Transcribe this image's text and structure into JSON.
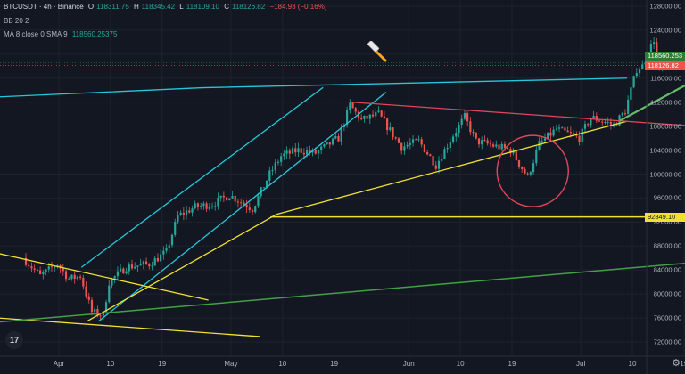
{
  "legend": {
    "symbol": "BTCUSDT · 4h · Binance",
    "o_label": "O",
    "o_value": "118311.75",
    "h_label": "H",
    "h_value": "118345.42",
    "l_label": "L",
    "l_value": "118109.10",
    "c_label": "C",
    "c_value": "118126.82",
    "change": "−184.93 (−0.16%)",
    "ma_label": "MA 8 close 0 SMA 9",
    "ma_value": "118560.25375",
    "bb_label": "BB 20 2"
  },
  "price_tags": {
    "ma": "118560.253",
    "last": "118126.82",
    "support": "92849.10"
  },
  "y_ticks": [
    "128000.00",
    "124000.00",
    "120000.00",
    "116000.00",
    "112000.00",
    "108000.00",
    "104000.00",
    "100000.00",
    "96000.00",
    "92000.00",
    "88000.00",
    "84000.00",
    "80000.00",
    "76000.00",
    "72000.00"
  ],
  "x_ticks": [
    "Apr",
    "10",
    "19",
    "May",
    "10",
    "19",
    "Jun",
    "10",
    "19",
    "Jul",
    "10",
    "19"
  ],
  "colors": {
    "background": "#131722",
    "up": "#26a69a",
    "down": "#ef5350",
    "trend_cyan": "#26c6da",
    "trend_yellow": "#f0e130",
    "trend_red": "#e0455a",
    "trend_green": "#43a047",
    "ma_tag": "#2e7d32",
    "last_tag": "#ef5350",
    "support_tag": "#f0e130"
  },
  "icons": {
    "logo": "tradingview-logo-icon",
    "settings": "gear-icon",
    "cursor": "hammer-icon"
  },
  "chart_data": {
    "type": "candlestick",
    "symbol": "BTCUSDT",
    "timeframe": "4h",
    "exchange": "Binance",
    "ylim": [
      71000,
      129000
    ],
    "x_labels": [
      "Apr",
      "10",
      "19",
      "May",
      "10",
      "19",
      "Jun",
      "10",
      "19",
      "Jul",
      "10",
      "19"
    ],
    "price_path": [
      [
        "Mar 26",
        86000
      ],
      [
        "Mar 29",
        83000
      ],
      [
        "Apr 1",
        85000
      ],
      [
        "Apr 3",
        82500
      ],
      [
        "Apr 5",
        83000
      ],
      [
        "Apr 7",
        77000
      ],
      [
        "Apr 9",
        76500
      ],
      [
        "Apr 10",
        82000
      ],
      [
        "Apr 13",
        84500
      ],
      [
        "Apr 17",
        85000
      ],
      [
        "Apr 20",
        87000
      ],
      [
        "Apr 22",
        93000
      ],
      [
        "Apr 25",
        94500
      ],
      [
        "Apr 28",
        95000
      ],
      [
        "May 1",
        96500
      ],
      [
        "May 5",
        94200
      ],
      [
        "May 8",
        100000
      ],
      [
        "May 10",
        103000
      ],
      [
        "May 13",
        104000
      ],
      [
        "May 16",
        103500
      ],
      [
        "May 20",
        106000
      ],
      [
        "May 22",
        111500
      ],
      [
        "May 24",
        109000
      ],
      [
        "May 27",
        110000
      ],
      [
        "May 31",
        104500
      ],
      [
        "Jun 3",
        105500
      ],
      [
        "Jun 6",
        101500
      ],
      [
        "Jun 9",
        106500
      ],
      [
        "Jun 11",
        109500
      ],
      [
        "Jun 13",
        105500
      ],
      [
        "Jun 17",
        104500
      ],
      [
        "Jun 19",
        104000
      ],
      [
        "Jun 22",
        99500
      ],
      [
        "Jun 24",
        105000
      ],
      [
        "Jun 27",
        107500
      ],
      [
        "Jul 1",
        106000
      ],
      [
        "Jul 3",
        109500
      ],
      [
        "Jul 7",
        108200
      ],
      [
        "Jul 9",
        110500
      ],
      [
        "Jul 11",
        117500
      ],
      [
        "Jul 12",
        118000
      ],
      [
        "Jul 14",
        122500
      ],
      [
        "Jul 15",
        117000
      ],
      [
        "Jul 17",
        120000
      ],
      [
        "Jul 18",
        118127
      ]
    ],
    "last_close": 118126.82,
    "ma_8_sma_9": 118560.25375,
    "horizontal_support": 92849.1,
    "annotations": [
      "cyan ascending channel lines",
      "yellow rising trendline",
      "red descending resistance line",
      "yellow descending lines (March–April)",
      "green long-term rising support line",
      "green short-term rising line (July)",
      "red circle around June 22 dip",
      "yellow horizontal support line at 92849.10"
    ]
  }
}
